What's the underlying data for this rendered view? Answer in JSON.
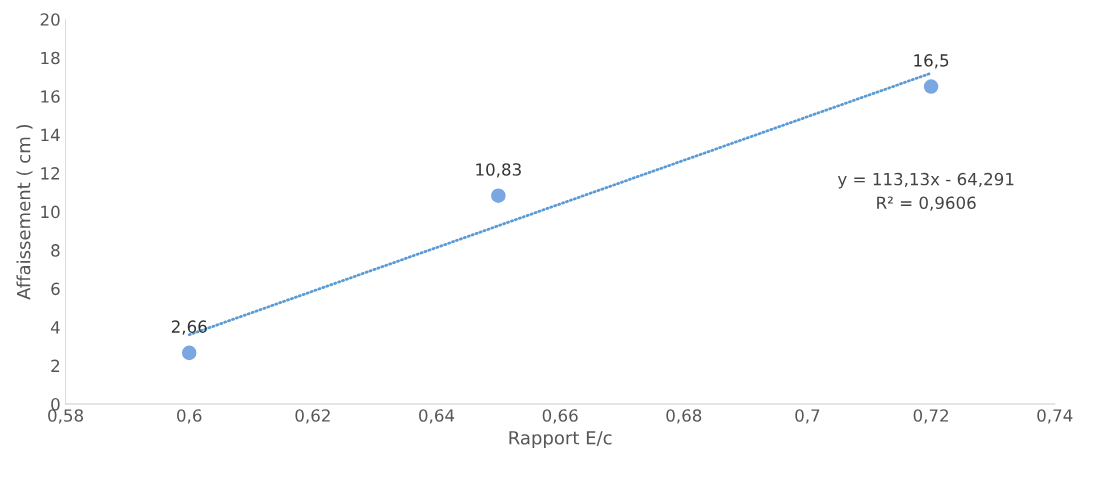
{
  "chart_data": {
    "type": "scatter",
    "xlabel": "Rapport E/c",
    "ylabel": "Affaissement ( cm )",
    "xlim": [
      0.58,
      0.74
    ],
    "xticks": [
      {
        "value": 0.58,
        "label": "0,58"
      },
      {
        "value": 0.6,
        "label": "0,6"
      },
      {
        "value": 0.62,
        "label": "0,62"
      },
      {
        "value": 0.64,
        "label": "0,64"
      },
      {
        "value": 0.66,
        "label": "0,66"
      },
      {
        "value": 0.68,
        "label": "0,68"
      },
      {
        "value": 0.7,
        "label": "0,7"
      },
      {
        "value": 0.72,
        "label": "0,72"
      },
      {
        "value": 0.74,
        "label": "0,74"
      }
    ],
    "ylim": [
      0,
      20
    ],
    "yticks": [
      0,
      2,
      4,
      6,
      8,
      10,
      12,
      14,
      16,
      18,
      20
    ],
    "grid": false,
    "legend": false,
    "series": [
      {
        "color": "#7ba7e1",
        "marker": "circle",
        "x": [
          0.6,
          0.65,
          0.72
        ],
        "values": [
          2.66,
          10.83,
          16.5
        ],
        "value_labels": [
          "2,66",
          "10,83",
          "16,5"
        ]
      },
      {
        "type": "line",
        "color": "#5b9bd5",
        "line_style": "dotted",
        "marker": "none",
        "x": [
          0.6,
          0.72
        ],
        "values": [
          3.6,
          17.2
        ]
      }
    ],
    "annotations": [
      "y = 113,13x - 64,291\nR² = 0,9606"
    ]
  }
}
